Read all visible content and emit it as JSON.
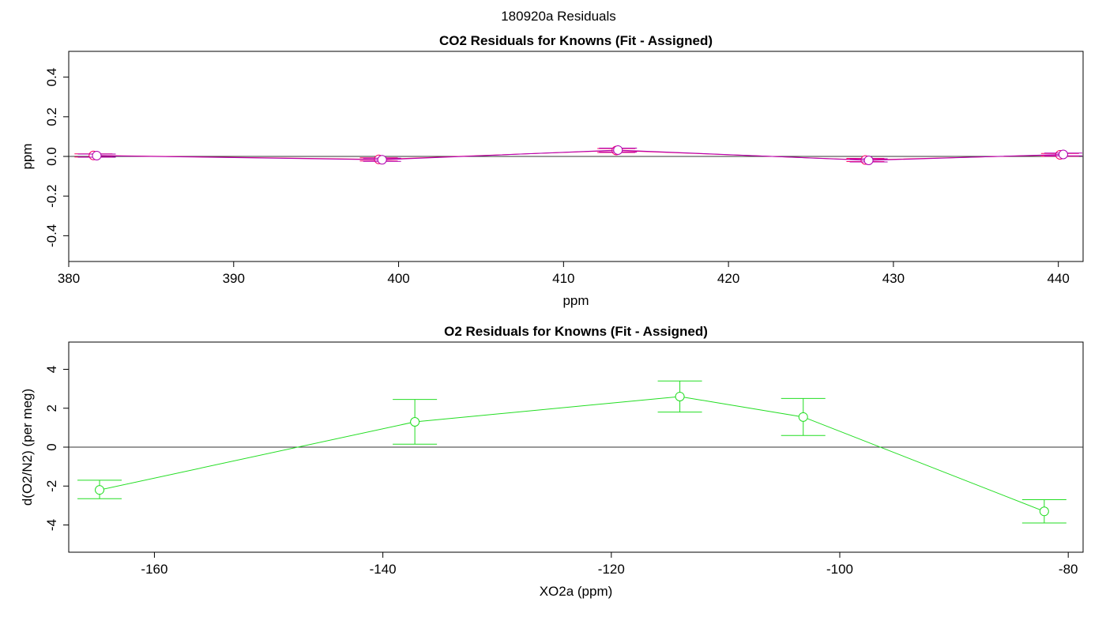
{
  "page_title": "180920a  Residuals",
  "colors": {
    "co2_line": "#b000b0",
    "co2_alt": "#ff0066",
    "co2_marker_fill": "#ffffff",
    "o2_line": "#22dd22",
    "zero_line": "#333333",
    "axis": "#000000"
  },
  "chart_data": [
    {
      "type": "line",
      "title": "CO2 Residuals for Knowns (Fit - Assigned)",
      "xlabel": "ppm",
      "ylabel": "ppm",
      "xlim": [
        380,
        441.5
      ],
      "ylim": [
        -0.53,
        0.53
      ],
      "xticks": [
        380,
        390,
        400,
        410,
        420,
        430,
        440
      ],
      "yticks": [
        -0.4,
        -0.2,
        0.0,
        0.2,
        0.4
      ],
      "xtick_labels": [
        "380",
        "390",
        "400",
        "410",
        "420",
        "430",
        "440"
      ],
      "ytick_labels": [
        "-0.4",
        "-0.2",
        "0.0",
        "0.2",
        "0.4"
      ],
      "zero_line": 0,
      "grid": false,
      "series": [
        {
          "x": [
            381.5,
            398.8,
            413.2,
            428.3,
            440.1
          ],
          "y": [
            0.005,
            -0.015,
            0.03,
            -0.018,
            0.008
          ],
          "err": [
            0.008,
            0.008,
            0.01,
            0.008,
            0.007
          ]
        },
        {
          "x": [
            381.7,
            399.0,
            413.3,
            428.5,
            440.3
          ],
          "y": [
            0.004,
            -0.017,
            0.032,
            -0.02,
            0.01
          ],
          "err": [
            0.008,
            0.008,
            0.01,
            0.008,
            0.007
          ]
        }
      ]
    },
    {
      "type": "line",
      "title": "O2 Residuals for Knowns (Fit - Assigned)",
      "xlabel": "XO2a (ppm)",
      "ylabel": "d(O2/N2) (per meg)",
      "xlim": [
        -167.5,
        -78.7
      ],
      "ylim": [
        -5.4,
        5.4
      ],
      "xticks": [
        -160,
        -140,
        -120,
        -100,
        -80
      ],
      "yticks": [
        -4,
        -2,
        0,
        2,
        4
      ],
      "xtick_labels": [
        "-160",
        "-140",
        "-120",
        "-100",
        "-80"
      ],
      "ytick_labels": [
        "-4",
        "-2",
        "0",
        "2",
        "4"
      ],
      "zero_line": 0,
      "grid": false,
      "series": [
        {
          "x": [
            -164.8,
            -137.2,
            -114.0,
            -103.2,
            -82.1
          ],
          "y": [
            -2.2,
            1.3,
            2.6,
            1.55,
            -3.3
          ],
          "err_low": [
            0.45,
            1.15,
            0.8,
            0.95,
            0.6
          ],
          "err_high": [
            0.5,
            1.15,
            0.8,
            0.95,
            0.6
          ]
        }
      ]
    }
  ]
}
